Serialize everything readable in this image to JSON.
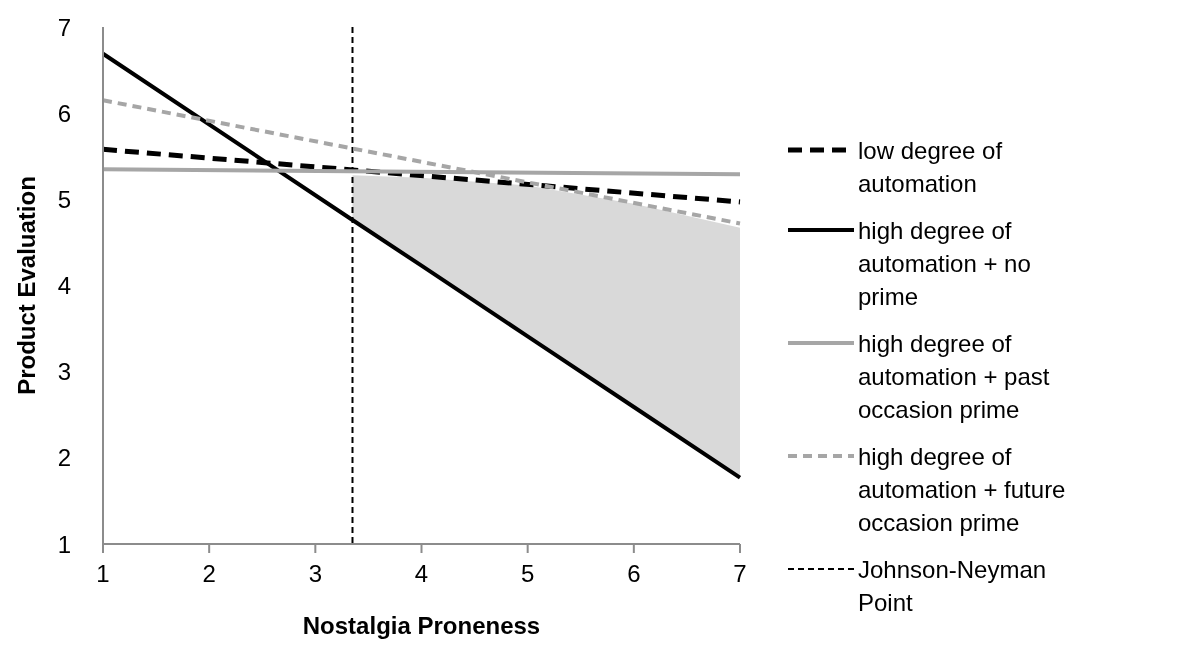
{
  "chart_data": {
    "type": "line",
    "xlabel": "Nostalgia Proneness",
    "ylabel": "Product Evaluation",
    "xlim": [
      1,
      7
    ],
    "xticks": [
      1,
      2,
      3,
      4,
      5,
      6,
      7
    ],
    "ylim": [
      1,
      7
    ],
    "yticks": [
      1,
      2,
      3,
      4,
      5,
      6,
      7
    ],
    "grid": false,
    "legend": "right",
    "series": [
      {
        "name": "low degree of automation",
        "color": "#000000",
        "line_style": "dashed",
        "x": [
          1,
          7
        ],
        "values": [
          5.58,
          4.97
        ]
      },
      {
        "name": "high degree of automation + no prime",
        "color": "#000000",
        "line_style": "solid",
        "x": [
          1,
          3.35,
          4,
          5,
          6,
          7
        ],
        "values": [
          6.69,
          4.76,
          4.23,
          3.41,
          2.59,
          1.77
        ],
        "lower": [
          null,
          4.76,
          4.23,
          3.41,
          2.59,
          1.77
        ],
        "upper": [
          null,
          5.28,
          5.25,
          5.16,
          4.95,
          4.67
        ]
      },
      {
        "name": "high degree of automation + past occasion prime",
        "color": "#a6a6a6",
        "line_style": "solid",
        "x": [
          1,
          7
        ],
        "values": [
          5.35,
          5.29
        ]
      },
      {
        "name": "high degree of automation + future occasion prime",
        "color": "#a6a6a6",
        "line_style": "dotted",
        "x": [
          1,
          7
        ],
        "values": [
          6.15,
          4.72
        ]
      }
    ],
    "ref_lines": [
      {
        "axis": "x",
        "value": 3.35,
        "label": "Johnson-Neyman Point",
        "color": "#000000",
        "line_style": "dashed"
      }
    ]
  }
}
